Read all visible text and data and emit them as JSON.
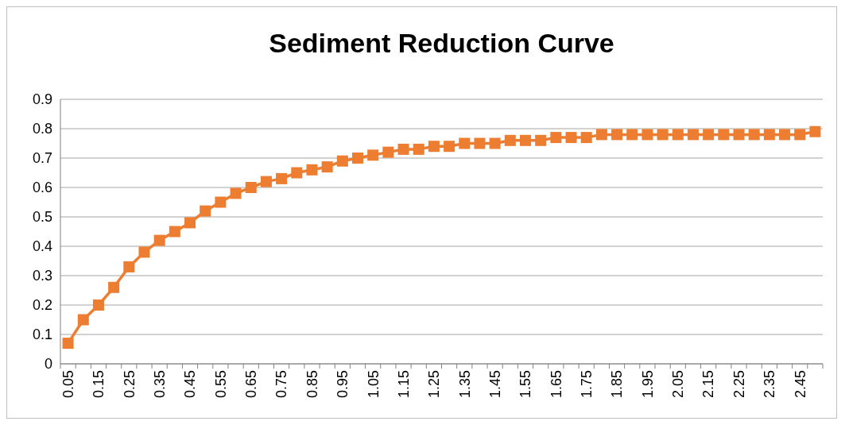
{
  "chart_data": {
    "type": "line",
    "title": "Sediment Reduction Curve",
    "categories": [
      "0.05",
      null,
      "0.15",
      null,
      "0.25",
      null,
      "0.35",
      null,
      "0.45",
      null,
      "0.55",
      null,
      "0.65",
      null,
      "0.75",
      null,
      "0.85",
      null,
      "0.95",
      null,
      "1.05",
      null,
      "1.15",
      null,
      "1.25",
      null,
      "1.35",
      null,
      "1.45",
      null,
      "1.55",
      null,
      "1.65",
      null,
      "1.75",
      null,
      "1.85",
      null,
      "1.95",
      null,
      "2.05",
      null,
      "2.15",
      null,
      "2.25",
      null,
      "2.35",
      null,
      "2.45",
      null
    ],
    "series": [
      {
        "color": "#ed7d31",
        "values": [
          0.07,
          0.15,
          0.2,
          0.26,
          0.33,
          0.38,
          0.42,
          0.45,
          0.48,
          0.52,
          0.55,
          0.58,
          0.6,
          0.62,
          0.63,
          0.65,
          0.66,
          0.67,
          0.69,
          0.7,
          0.71,
          0.72,
          0.73,
          0.73,
          0.74,
          0.74,
          0.75,
          0.75,
          0.75,
          0.76,
          0.76,
          0.76,
          0.77,
          0.77,
          0.77,
          0.78,
          0.78,
          0.78,
          0.78,
          0.78,
          0.78,
          0.78,
          0.78,
          0.78,
          0.78,
          0.78,
          0.78,
          0.78,
          0.78,
          0.79
        ]
      }
    ],
    "ylim": [
      0,
      0.9
    ],
    "yticks": [
      0,
      0.1,
      0.2,
      0.3,
      0.4,
      0.5,
      0.6,
      0.7,
      0.8,
      0.9
    ],
    "grid": "y",
    "marker": "square",
    "line_style": "solid"
  }
}
